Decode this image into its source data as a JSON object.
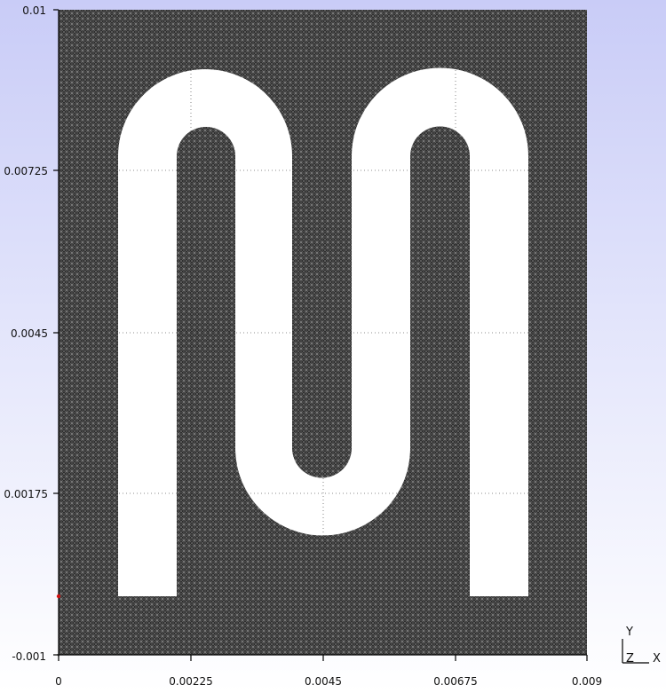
{
  "viewer": {
    "background_top": "#c9ccf7",
    "background_bottom": "#ffffff",
    "mesh_color": "#2b2b2b",
    "fluid_color": "#ffffff",
    "marker_color": "#d01010"
  },
  "axes": {
    "x_ticks": [
      "0",
      "0.00225",
      "0.0045",
      "0.00675",
      "0.009"
    ],
    "y_ticks": [
      "0.01",
      "0.00725",
      "0.0045",
      "0.00175",
      "-0.001"
    ]
  },
  "orientation": {
    "y_label": "Y",
    "z_label": "Z",
    "x_label": "X"
  }
}
